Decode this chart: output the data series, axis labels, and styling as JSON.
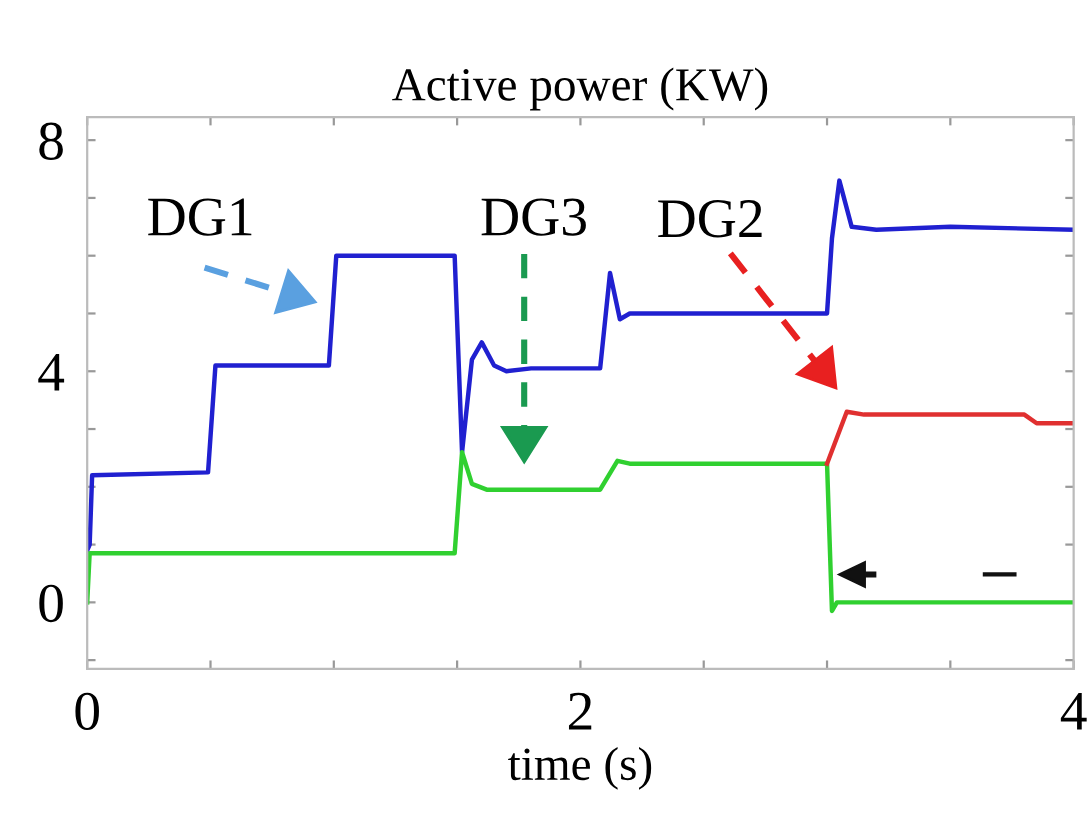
{
  "chart_data": {
    "type": "line",
    "title": "Active power (KW)",
    "xlabel": "time (s)",
    "xlim": [
      0,
      4
    ],
    "ylim": [
      -1.15,
      8.4
    ],
    "xticks": [
      0,
      {
        "value": 0.5,
        "label": null
      },
      {
        "value": 1,
        "label": null
      },
      {
        "value": 1.5,
        "label": null
      },
      2,
      {
        "value": 2.5,
        "label": null
      },
      {
        "value": 3,
        "label": null
      },
      {
        "value": 3.5,
        "label": null
      },
      4
    ],
    "yticks": [
      {
        "value": -1,
        "label": null
      },
      0,
      {
        "value": 1,
        "label": null
      },
      {
        "value": 2,
        "label": null
      },
      {
        "value": 3,
        "label": null
      },
      4,
      {
        "value": 5,
        "label": null
      },
      {
        "value": 6,
        "label": null
      },
      {
        "value": 7,
        "label": null
      },
      8
    ],
    "grid": false,
    "legend": false,
    "marker": "none",
    "line_style": "solid",
    "series": [
      {
        "color": "#2020d0",
        "x": [
          0,
          0.01,
          0.02,
          0.49,
          0.52,
          0.98,
          1.01,
          1.49,
          1.52,
          1.56,
          1.6,
          1.65,
          1.7,
          1.8,
          2.08,
          2.12,
          2.16,
          2.2,
          2.3,
          3.0,
          3.02,
          3.05,
          3.1,
          3.2,
          3.5,
          4.0
        ],
        "values": [
          0.9,
          1.0,
          2.2,
          2.25,
          4.1,
          4.1,
          6.0,
          6.0,
          2.6,
          4.2,
          4.5,
          4.1,
          4.0,
          4.05,
          4.05,
          5.7,
          4.9,
          5.0,
          5.0,
          5.0,
          6.3,
          7.3,
          6.5,
          6.45,
          6.5,
          6.45
        ]
      },
      {
        "color": "#30d030",
        "x": [
          0,
          0.01,
          0.02,
          1.49,
          1.52,
          1.56,
          1.62,
          1.7,
          2.08,
          2.15,
          2.2,
          3.0,
          3.02,
          3.04,
          4.0
        ],
        "values": [
          0,
          0.85,
          0.85,
          0.85,
          2.6,
          2.05,
          1.95,
          1.95,
          1.95,
          2.45,
          2.4,
          2.4,
          -0.15,
          0.0,
          0.0
        ]
      },
      {
        "color": "#e03030",
        "x": [
          3.0,
          3.08,
          3.15,
          3.8,
          3.85,
          4.0
        ],
        "values": [
          2.4,
          3.3,
          3.25,
          3.25,
          3.1,
          3.1
        ]
      }
    ],
    "annotations": [
      "DG1",
      "DG3",
      "DG2"
    ]
  }
}
